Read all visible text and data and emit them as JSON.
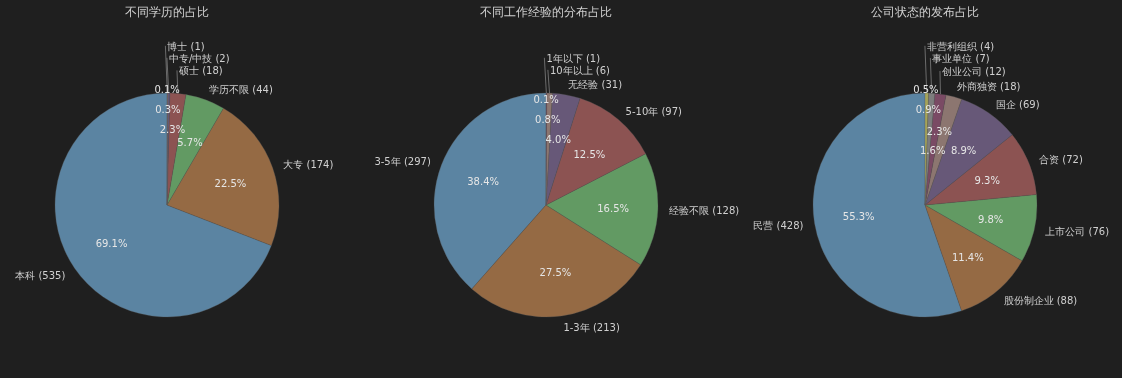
{
  "chart_data": [
    {
      "type": "pie",
      "title": "不同学历的占比",
      "categories": [
        "本科 (535)",
        "大专 (174)",
        "学历不限 (44)",
        "硕士 (18)",
        "中专/中技 (2)",
        "博士 (1)"
      ],
      "values": [
        69.1,
        22.5,
        5.7,
        2.3,
        0.3,
        0.1
      ],
      "value_labels": [
        "69.1%",
        "22.5%",
        "5.7%",
        "2.3%",
        "0.3%",
        "0.1%"
      ],
      "colors": [
        "#5b84a2",
        "#956a44",
        "#629a63",
        "#8c5352",
        "#675878",
        "#8c7670"
      ]
    },
    {
      "type": "pie",
      "title": "不同工作经验的分布占比",
      "categories": [
        "3-5年 (297)",
        "1-3年 (213)",
        "经验不限 (128)",
        "5-10年 (97)",
        "无经验 (31)",
        "10年以上 (6)",
        "1年以下 (1)"
      ],
      "values": [
        38.4,
        27.5,
        16.5,
        12.5,
        4.0,
        0.8,
        0.1
      ],
      "value_labels": [
        "38.4%",
        "27.5%",
        "16.5%",
        "12.5%",
        "4.0%",
        "0.8%",
        "0.1%"
      ],
      "colors": [
        "#5b84a2",
        "#956a44",
        "#629a63",
        "#8c5352",
        "#675878",
        "#8c7670",
        "#7a4a64"
      ]
    },
    {
      "type": "pie",
      "title": "公司状态的发布占比",
      "categories": [
        "民营 (428)",
        "股份制企业 (88)",
        "上市公司 (76)",
        "合资 (72)",
        "国企 (69)",
        "外商独资 (18)",
        "创业公司 (12)",
        "事业单位 (7)",
        "非营利组织 (4)"
      ],
      "values": [
        55.3,
        11.4,
        9.8,
        9.3,
        8.9,
        2.3,
        1.6,
        0.9,
        0.5
      ],
      "value_labels": [
        "55.3%",
        "11.4%",
        "9.8%",
        "9.3%",
        "8.9%",
        "2.3%",
        "1.6%",
        "0.9%",
        "0.5%"
      ],
      "colors": [
        "#5b84a2",
        "#956a44",
        "#629a63",
        "#8c5352",
        "#675878",
        "#8c7670",
        "#7a4a64",
        "#7d7d7d",
        "#a5a45a"
      ]
    }
  ]
}
